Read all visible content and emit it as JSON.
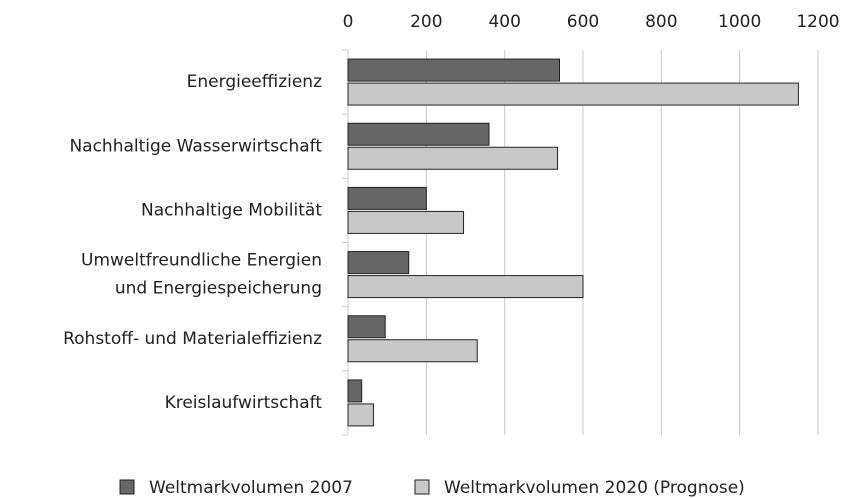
{
  "chart_data": {
    "type": "barh",
    "categories": [
      "Energieeffizienz",
      "Nachhaltige Wasserwirtschaft",
      "Nachhaltige Mobilität",
      "Umweltfreundliche Energien\nund Energiespeicherung",
      "Rohstoff- und Materialeffizienz",
      "Kreislaufwirtschaft"
    ],
    "series": [
      {
        "name": "Weltmarkvolumen 2007",
        "color": "#666666",
        "values": [
          540,
          360,
          200,
          155,
          95,
          35
        ]
      },
      {
        "name": "Weltmarkvolumen 2020 (Prognose)",
        "color": "#c8c8c8",
        "values": [
          1150,
          535,
          295,
          600,
          330,
          65
        ]
      }
    ],
    "xlim": [
      0,
      1200
    ],
    "xticks": [
      0,
      200,
      400,
      600,
      800,
      1000,
      1200
    ],
    "grid": true,
    "legend": "bottom"
  }
}
